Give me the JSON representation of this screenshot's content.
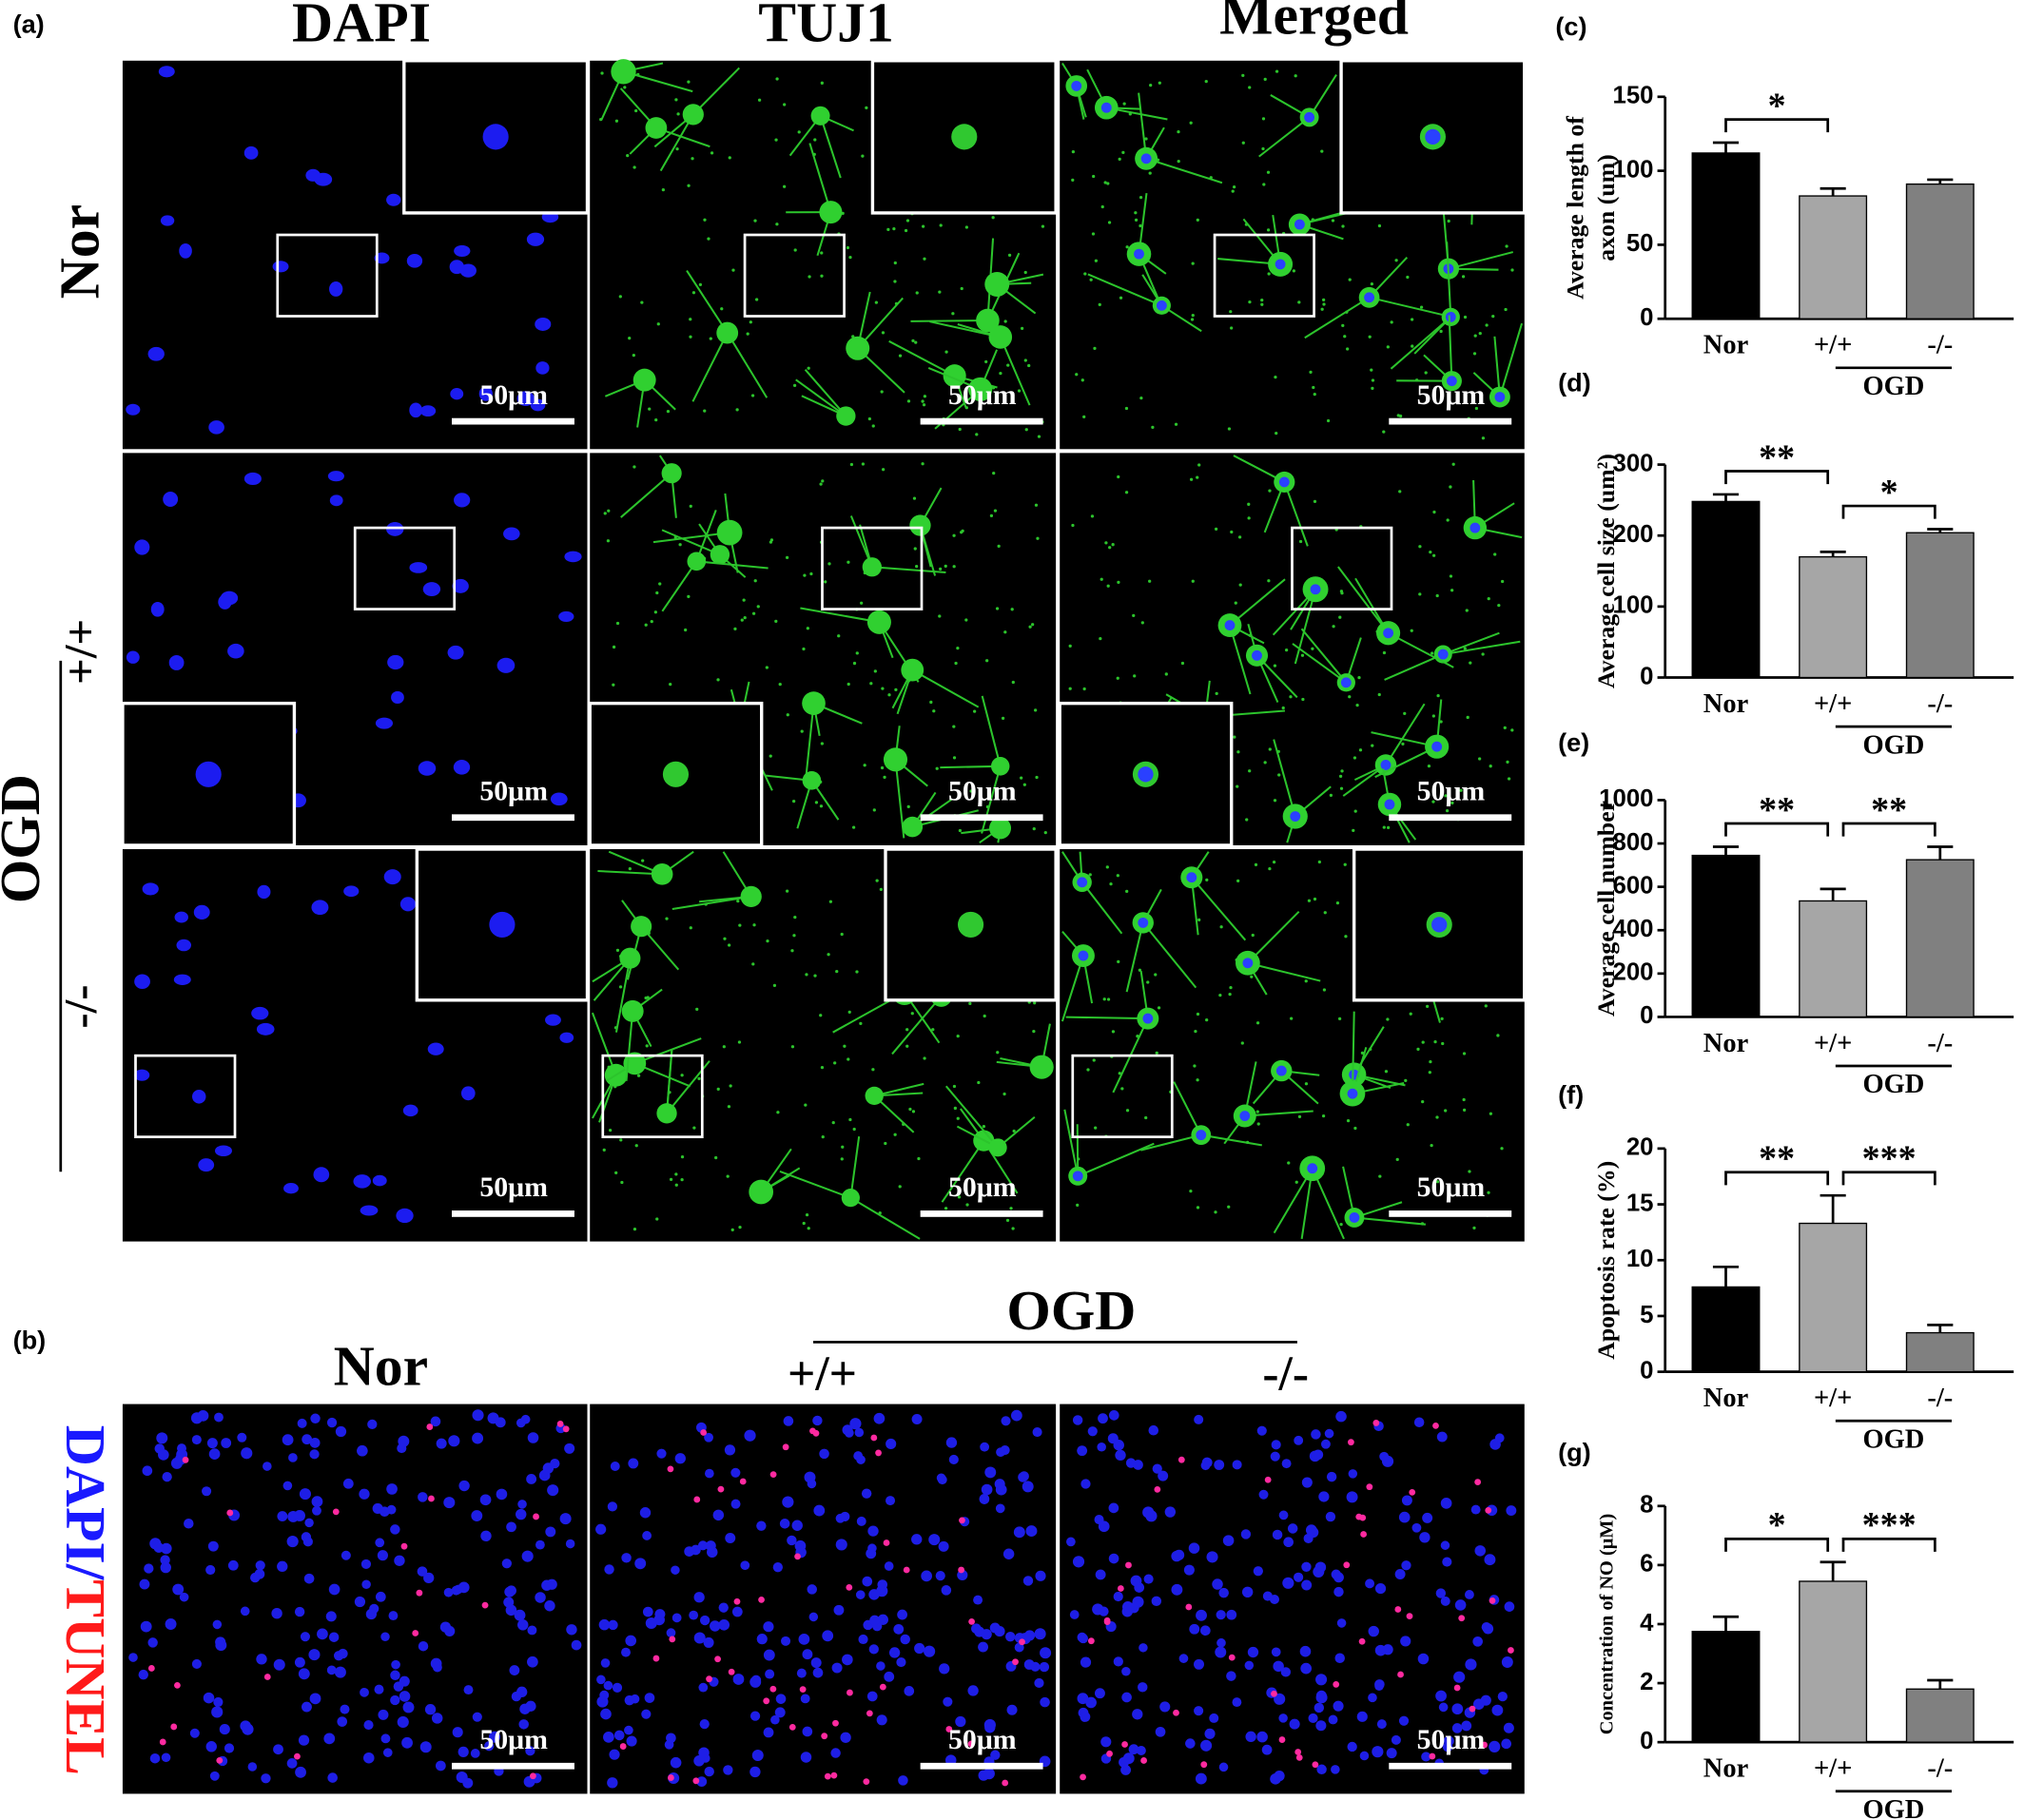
{
  "panel_a": {
    "label": "(a)",
    "columns": [
      "DAPI",
      "TUJ1",
      "Merged"
    ],
    "rows": [
      "Nor",
      "+/+",
      "-/-"
    ],
    "group_label": "OGD",
    "scale_bars": [
      "50μm",
      "50μm",
      "50μm",
      "50μm",
      "50μm",
      "50μm",
      "50μm",
      "50μm",
      "50μm"
    ]
  },
  "panel_b": {
    "label": "(b)",
    "columns": [
      "Nor",
      "+/+",
      "-/-"
    ],
    "group_label": "OGD",
    "stain_label": [
      "DAPI/",
      "TUNEL"
    ],
    "scale_bars": [
      "50μm",
      "50μm",
      "50μm"
    ]
  },
  "chart_data": [
    {
      "type": "bar",
      "panel_label": "(c)",
      "ylabel": [
        "Average length of",
        "axon (um)"
      ],
      "categories": [
        "Nor",
        "+/+",
        "-/-"
      ],
      "group_label": "OGD",
      "colors": [
        "#000000",
        "#a6a6a6",
        "#808080"
      ],
      "series": [
        {
          "values": [
            112,
            83,
            91
          ],
          "errors": [
            7,
            5,
            3
          ]
        }
      ],
      "ylim": [
        0,
        150
      ],
      "yticks": [
        0,
        50,
        100,
        150
      ],
      "significance": [
        {
          "text": "*",
          "pair": [
            0,
            1
          ]
        }
      ]
    },
    {
      "type": "bar",
      "panel_label": "(d)",
      "ylabel": [
        "Average cell size (um²)"
      ],
      "categories": [
        "Nor",
        "+/+",
        "-/-"
      ],
      "group_label": "OGD",
      "colors": [
        "#000000",
        "#a6a6a6",
        "#808080"
      ],
      "series": [
        {
          "values": [
            248,
            170,
            204
          ],
          "errors": [
            10,
            7,
            5
          ]
        }
      ],
      "ylim": [
        0,
        300
      ],
      "yticks": [
        0,
        100,
        200,
        300
      ],
      "significance": [
        {
          "text": "**",
          "pair": [
            0,
            1
          ]
        },
        {
          "text": "*",
          "pair": [
            1,
            2
          ]
        }
      ]
    },
    {
      "type": "bar",
      "panel_label": "(e)",
      "ylabel": [
        "Average cell number"
      ],
      "categories": [
        "Nor",
        "+/+",
        "-/-"
      ],
      "group_label": "OGD",
      "colors": [
        "#000000",
        "#a6a6a6",
        "#808080"
      ],
      "series": [
        {
          "values": [
            745,
            535,
            725
          ],
          "errors": [
            40,
            55,
            60
          ]
        }
      ],
      "ylim": [
        0,
        1000
      ],
      "yticks": [
        0,
        200,
        400,
        600,
        800,
        1000
      ],
      "significance": [
        {
          "text": "**",
          "pair": [
            0,
            1
          ]
        },
        {
          "text": "**",
          "pair": [
            1,
            2
          ]
        }
      ]
    },
    {
      "type": "bar",
      "panel_label": "(f)",
      "ylabel": [
        "Apoptosis rate (%)"
      ],
      "categories": [
        "Nor",
        "+/+",
        "-/-"
      ],
      "group_label": "OGD",
      "colors": [
        "#000000",
        "#a6a6a6",
        "#808080"
      ],
      "series": [
        {
          "values": [
            7.6,
            13.3,
            3.5
          ],
          "errors": [
            1.8,
            2.5,
            0.7
          ]
        }
      ],
      "ylim": [
        0,
        20
      ],
      "yticks": [
        0,
        5,
        10,
        15,
        20
      ],
      "significance": [
        {
          "text": "**",
          "pair": [
            0,
            1
          ]
        },
        {
          "text": "***",
          "pair": [
            1,
            2
          ]
        }
      ]
    },
    {
      "type": "bar",
      "panel_label": "(g)",
      "ylabel": [
        "Concentration of NO (μM)"
      ],
      "categories": [
        "Nor",
        "+/+",
        "-/-"
      ],
      "group_label": "OGD",
      "colors": [
        "#000000",
        "#a6a6a6",
        "#808080"
      ],
      "series": [
        {
          "values": [
            3.75,
            5.45,
            1.8
          ],
          "errors": [
            0.5,
            0.65,
            0.3
          ]
        }
      ],
      "ylim": [
        0,
        8
      ],
      "yticks": [
        0,
        2,
        4,
        6,
        8
      ],
      "significance": [
        {
          "text": "*",
          "pair": [
            0,
            1
          ]
        },
        {
          "text": "***",
          "pair": [
            1,
            2
          ]
        }
      ]
    }
  ]
}
